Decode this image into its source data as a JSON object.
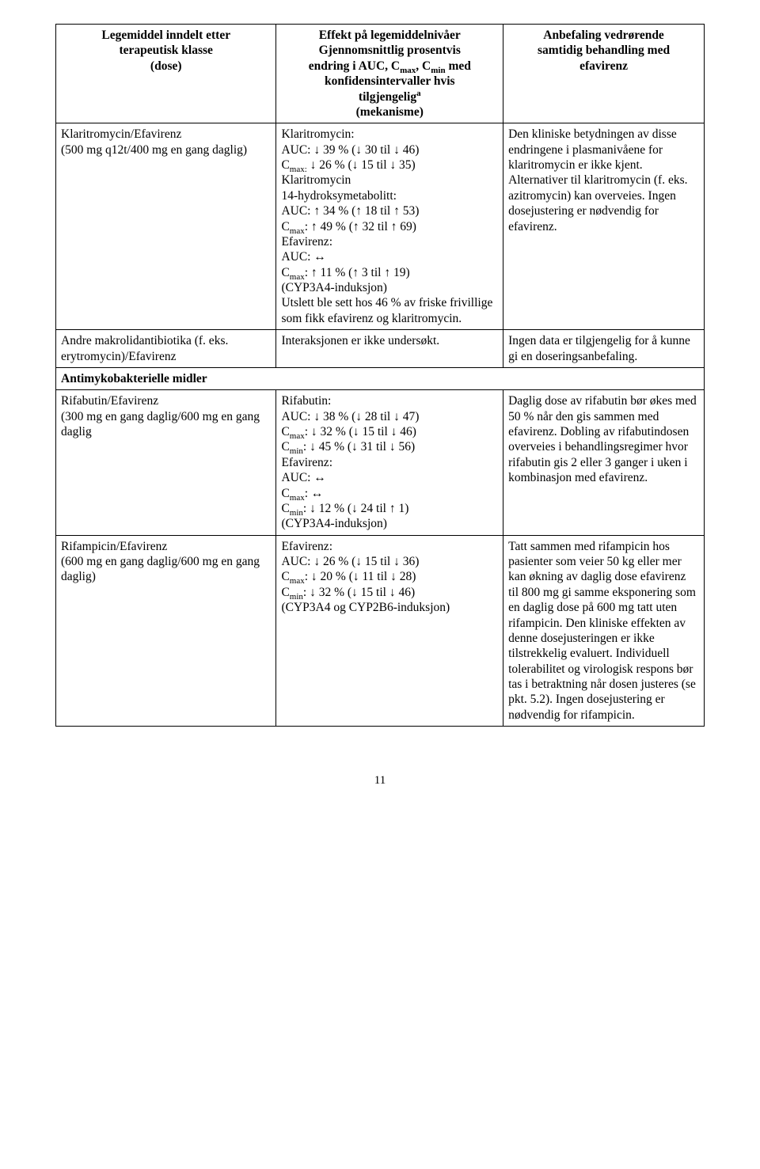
{
  "headers": {
    "col1_l1": "Legemiddel inndelt etter",
    "col1_l2": "terapeutisk klasse",
    "col1_l3": "(dose)",
    "col2_l1": "Effekt på legemiddelnivåer",
    "col2_l2": "Gjennomsnittlig prosentvis",
    "col2_l3a": "endring i AUC, C",
    "col2_l3b": ", C",
    "col2_l3c": " med",
    "col2_l4": "konfidensintervaller hvis",
    "col2_l5a": "tilgjengelig",
    "col2_l6": "(mekanisme)",
    "col3_l1": "Anbefaling vedrørende",
    "col3_l2": "samtidig behandling med",
    "col3_l3": "efavirenz",
    "sub_max": "max",
    "sub_min": "min",
    "sup_a": "a"
  },
  "r1": {
    "c1_l1": "Klaritromycin/Efavirenz",
    "c1_l2": "(500 mg q12t/400 mg en gang daglig)",
    "c2_l1": "Klaritromycin:",
    "c2_l2": "AUC: ↓ 39 % (↓ 30 til ↓ 46)",
    "c2_l3a": "C",
    "c2_l3b": " ↓ 26 % (↓ 15 til ↓ 35)",
    "c2_l3sub": "max:",
    "c2_l4": "Klaritromycin",
    "c2_l5": "14-hydroksymetabolitt:",
    "c2_l6": "AUC: ↑ 34 % (↑ 18 til ↑ 53)",
    "c2_l7a": "C",
    "c2_l7b": ": ↑ 49 % (↑ 32 til ↑ 69)",
    "c2_l8": "Efavirenz:",
    "c2_l9": "AUC: ↔",
    "c2_l10a": "C",
    "c2_l10b": ": ↑ 11 % (↑ 3 til ↑ 19)",
    "c2_l11": "(CYP3A4-induksjon)",
    "c2_l12": "Utslett ble sett hos 46 % av friske frivillige som fikk efavirenz og klaritromycin.",
    "c3": "Den kliniske betydningen av disse endringene i plasmanivåene for klaritromycin er ikke kjent. Alternativer til klaritromycin (f. eks. azitromycin) kan overveies. Ingen dosejustering er nødvendig for efavirenz."
  },
  "r2": {
    "c1": "Andre makrolidantibiotika (f. eks. erytromycin)/Efavirenz",
    "c2": "Interaksjonen er ikke undersøkt.",
    "c3": "Ingen data er tilgjengelig for å kunne gi en doseringsanbefaling."
  },
  "section": "Antimykobakterielle midler",
  "r3": {
    "c1_l1": "Rifabutin/Efavirenz",
    "c1_l2": "(300 mg en gang daglig/600 mg en gang daglig",
    "c2_l1": "Rifabutin:",
    "c2_l2": "AUC: ↓ 38 % (↓ 28 til ↓ 47)",
    "c2_l3a": "C",
    "c2_l3b": ": ↓ 32 % (↓ 15 til ↓ 46)",
    "c2_l4a": "C",
    "c2_l4b": ": ↓ 45 % (↓ 31 til ↓ 56)",
    "c2_l5": "Efavirenz:",
    "c2_l6": "AUC: ↔",
    "c2_l7a": "C",
    "c2_l7b": ": ↔",
    "c2_l8a": "C",
    "c2_l8b": ": ↓ 12 % (↓ 24 til ↑ 1)",
    "c2_l9": "(CYP3A4-induksjon)",
    "c3": "Daglig dose av rifabutin bør økes med 50 % når den gis sammen med efavirenz. Dobling av rifabutindosen overveies i behandlingsregimer hvor rifabutin gis 2 eller 3 ganger i uken i kombinasjon med efavirenz."
  },
  "r4": {
    "c1_l1": "Rifampicin/Efavirenz",
    "c1_l2": "(600 mg en gang daglig/600 mg en gang daglig)",
    "c2_l1": "Efavirenz:",
    "c2_l2": "AUC: ↓ 26 % (↓ 15 til ↓ 36)",
    "c2_l3a": "C",
    "c2_l3b": ": ↓ 20 % (↓ 11 til ↓ 28)",
    "c2_l4a": "C",
    "c2_l4b": ": ↓ 32 % (↓ 15 til ↓ 46)",
    "c2_l5": "(CYP3A4 og CYP2B6-induksjon)",
    "c3": "Tatt sammen med rifampicin hos pasienter som veier 50 kg eller mer kan økning av daglig dose efavirenz til 800 mg gi samme eksponering som en daglig dose på 600 mg tatt uten rifampicin. Den kliniske effekten av denne dosejusteringen er ikke tilstrekkelig evaluert. Individuell tolerabilitet og virologisk respons bør tas i betraktning når dosen justeres (se pkt. 5.2). Ingen dosejustering er nødvendig for rifampicin."
  },
  "page_num": "11"
}
